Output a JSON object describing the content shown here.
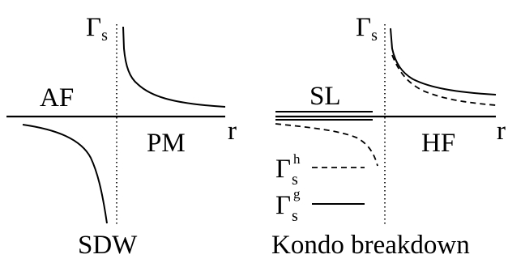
{
  "left_panel": {
    "axis_y_symbol": "Γ",
    "axis_y_subscript": "s",
    "axis_x_label": "r",
    "phase_left": "AF",
    "phase_right": "PM",
    "caption": "SDW"
  },
  "right_panel": {
    "axis_y_symbol": "Γ",
    "axis_y_subscript": "s",
    "axis_x_label": "r",
    "phase_left": "SL",
    "phase_right": "HF",
    "caption": "Kondo breakdown",
    "legend": [
      {
        "symbol": "Γ",
        "subscript": "s",
        "superscript": "h",
        "style": "dashed"
      },
      {
        "symbol": "Γ",
        "subscript": "s",
        "superscript": "g",
        "style": "solid"
      }
    ]
  }
}
